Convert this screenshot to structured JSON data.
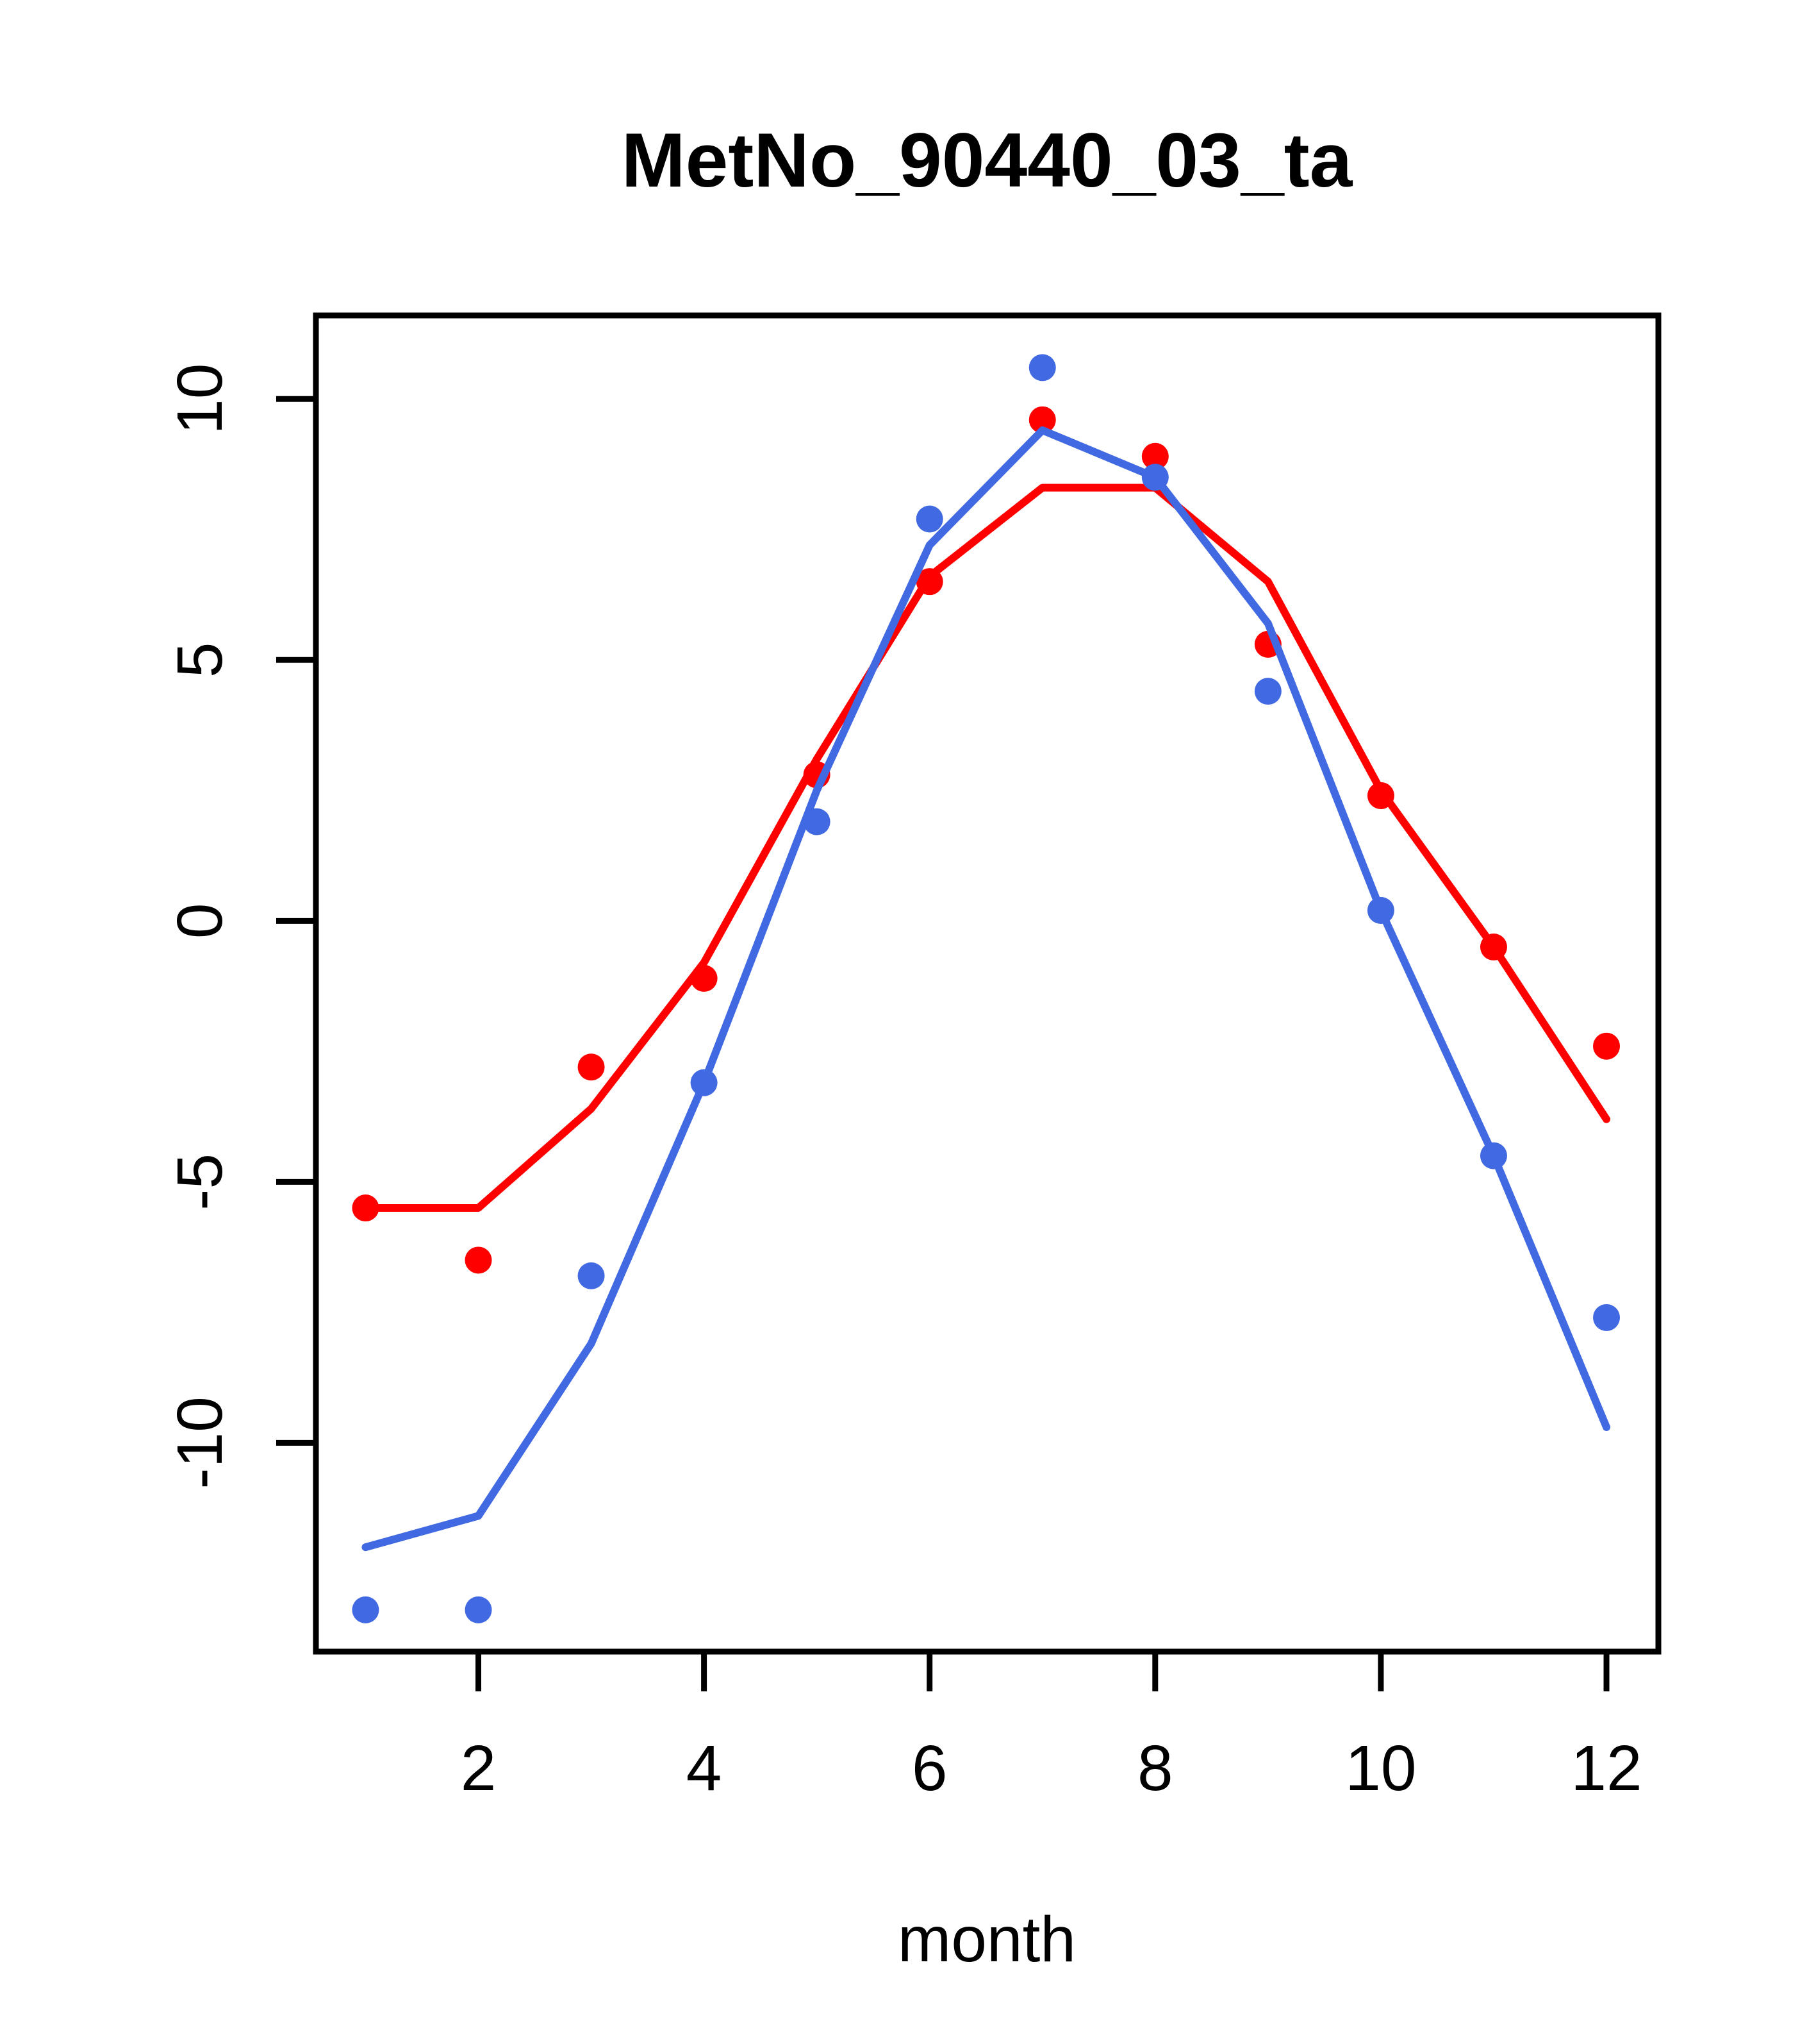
{
  "title": "MetNo_90440_03_ta",
  "axes": {
    "x_label": "month",
    "x_tick_labels": [
      "2",
      "4",
      "6",
      "8",
      "10",
      "12"
    ],
    "y_tick_labels": [
      "-10",
      "-5",
      "0",
      "5",
      "10"
    ]
  },
  "colors": {
    "red": "#ff0000",
    "blue": "#4169e1",
    "axis": "#000000",
    "background": "#ffffff"
  },
  "chart_data": {
    "type": "line",
    "title": "MetNo_90440_03_ta",
    "xlabel": "month",
    "ylabel": "",
    "x": [
      1,
      2,
      3,
      4,
      5,
      6,
      7,
      8,
      9,
      10,
      11,
      12
    ],
    "series": [
      {
        "name": "red-line",
        "style": "line",
        "color": "red",
        "values": [
          -5.5,
          -5.5,
          -3.6,
          -0.8,
          3.1,
          6.6,
          8.3,
          8.3,
          6.5,
          2.5,
          -0.5,
          -3.8
        ]
      },
      {
        "name": "red-points",
        "style": "points",
        "color": "red",
        "values": [
          -5.5,
          -6.5,
          -2.8,
          -1.1,
          2.8,
          6.5,
          9.6,
          8.9,
          5.3,
          2.4,
          -0.5,
          -2.4
        ]
      },
      {
        "name": "blue-line",
        "style": "line",
        "color": "blue",
        "values": [
          -12.0,
          -11.4,
          -8.1,
          -3.1,
          2.5,
          7.2,
          9.4,
          8.5,
          5.7,
          0.2,
          -4.5,
          -9.7
        ]
      },
      {
        "name": "blue-points",
        "style": "points",
        "color": "blue",
        "values": [
          -13.2,
          -13.2,
          -6.8,
          -3.1,
          1.9,
          7.7,
          10.6,
          8.5,
          4.4,
          0.2,
          -4.5,
          -7.6
        ]
      }
    ],
    "xticks": [
      2,
      4,
      6,
      8,
      10,
      12
    ],
    "yticks": [
      -10,
      -5,
      0,
      5,
      10
    ],
    "xlim": [
      0.56,
      12.46
    ],
    "ylim": [
      -14.0,
      11.6
    ],
    "grid": false,
    "legend": "none"
  }
}
